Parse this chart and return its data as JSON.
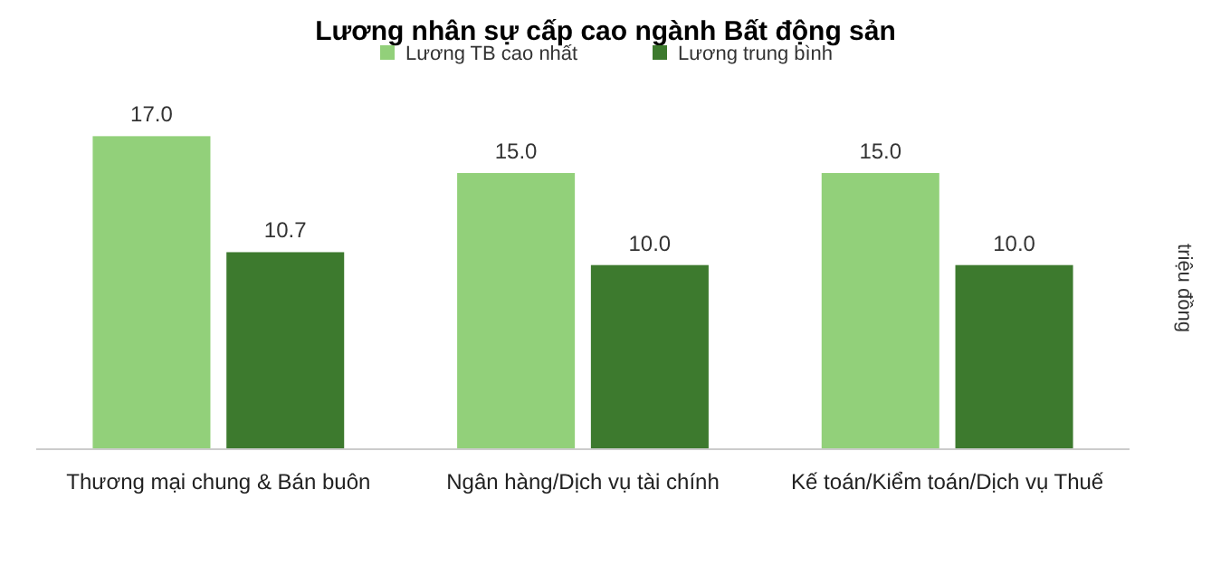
{
  "chart_data": {
    "type": "bar",
    "title": "Lương nhân sự cấp cao ngành Bất động sản",
    "ylabel": "triệu đồng",
    "categories": [
      "Thương mại chung & Bán buôn",
      "Ngân hàng/Dịch vụ tài chính",
      "Kế toán/Kiểm toán/Dịch vụ Thuế"
    ],
    "series": [
      {
        "name": "Lương TB cao nhất",
        "color": "#92d07a",
        "values": [
          17.0,
          15.0,
          15.0
        ],
        "value_labels": [
          "17.0",
          "15.0",
          "15.0"
        ]
      },
      {
        "name": "Lương trung bình",
        "color": "#3d7a2e",
        "values": [
          10.7,
          10.0,
          10.0
        ],
        "value_labels": [
          "10.7",
          "10.0",
          "10.0"
        ]
      }
    ],
    "legend": "top",
    "tick_labels": "x"
  }
}
